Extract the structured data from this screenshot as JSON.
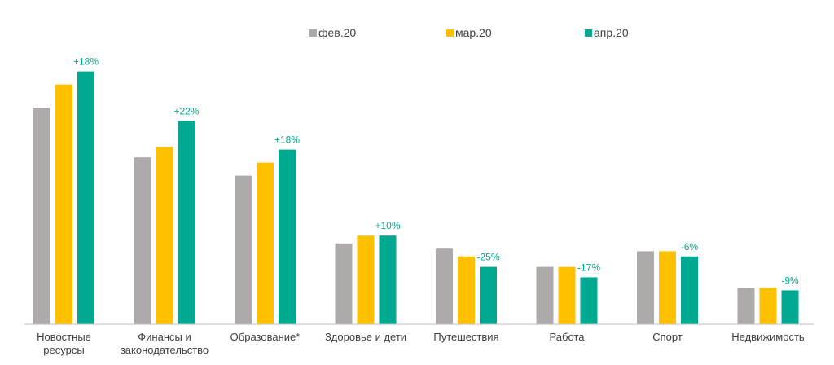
{
  "chart_data": {
    "type": "bar",
    "title": "",
    "xlabel": "",
    "ylabel": "",
    "ylim": [
      0,
      100
    ],
    "grid": false,
    "legend_position": "top",
    "categories": [
      [
        "Новостные",
        "ресурсы"
      ],
      [
        "Финансы и",
        "законодательство"
      ],
      [
        "Образование*"
      ],
      [
        "Здоровье и дети"
      ],
      [
        "Путешествия"
      ],
      [
        "Работа"
      ],
      [
        "Спорт"
      ],
      [
        "Недвижимость"
      ]
    ],
    "series": [
      {
        "name": "фев.20",
        "color": "#AEAAAA",
        "values": [
          83,
          64,
          57,
          31,
          29,
          22,
          28,
          14
        ]
      },
      {
        "name": "мар.20",
        "color": "#FFC000",
        "values": [
          92,
          68,
          62,
          34,
          26,
          22,
          28,
          14
        ]
      },
      {
        "name": "апр.20",
        "color": "#00A98F",
        "values": [
          97,
          78,
          67,
          34,
          22,
          18,
          26,
          13
        ]
      }
    ],
    "data_labels": {
      "series": "апр.20",
      "color": "#00A98F",
      "values": [
        "+18%",
        "+22%",
        "+18%",
        "+10%",
        "-25%",
        "-17%",
        "-6%",
        "-9%"
      ]
    }
  }
}
